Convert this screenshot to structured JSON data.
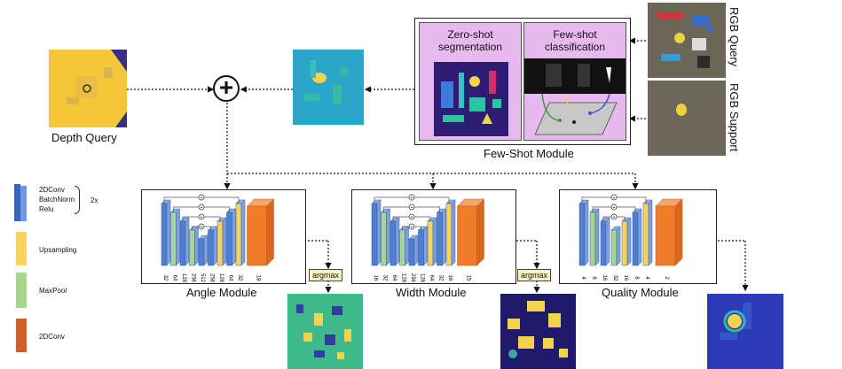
{
  "depth_query": {
    "label": "Depth Query"
  },
  "few_shot": {
    "module_label": "Few-Shot Module",
    "zero_shot_label": "Zero-shot\nsegmentation",
    "few_shot_label": "Few-shot\nclassification"
  },
  "rgb": {
    "query_label": "RGB Query",
    "support_label": "RGB Support"
  },
  "legend": {
    "conv_lines": [
      "2DConv",
      "BatchNorm",
      "Relu"
    ],
    "repeat": "2x",
    "upsampling": "Upsampling",
    "maxpool": "MaxPool",
    "conv2d": "2DConv"
  },
  "modules": [
    {
      "name": "Angle Module",
      "channels": [
        "32",
        "64",
        "128",
        "256",
        "512",
        "256",
        "128",
        "64",
        "32",
        "18"
      ]
    },
    {
      "name": "Width Module",
      "channels": [
        "16",
        "32",
        "64",
        "128",
        "256",
        "128",
        "64",
        "32",
        "16",
        "15"
      ]
    },
    {
      "name": "Quality Module",
      "channels": [
        "4",
        "8",
        "16",
        "32",
        "16",
        "8",
        "4",
        "2"
      ]
    }
  ],
  "argmax_label": "argmax",
  "colors": {
    "conv": "#4f7fd1",
    "maxpool": "#a9d68f",
    "upsampling": "#f7d55d",
    "conv2d": "#f07c2a",
    "panel": "#e7b9ef"
  }
}
